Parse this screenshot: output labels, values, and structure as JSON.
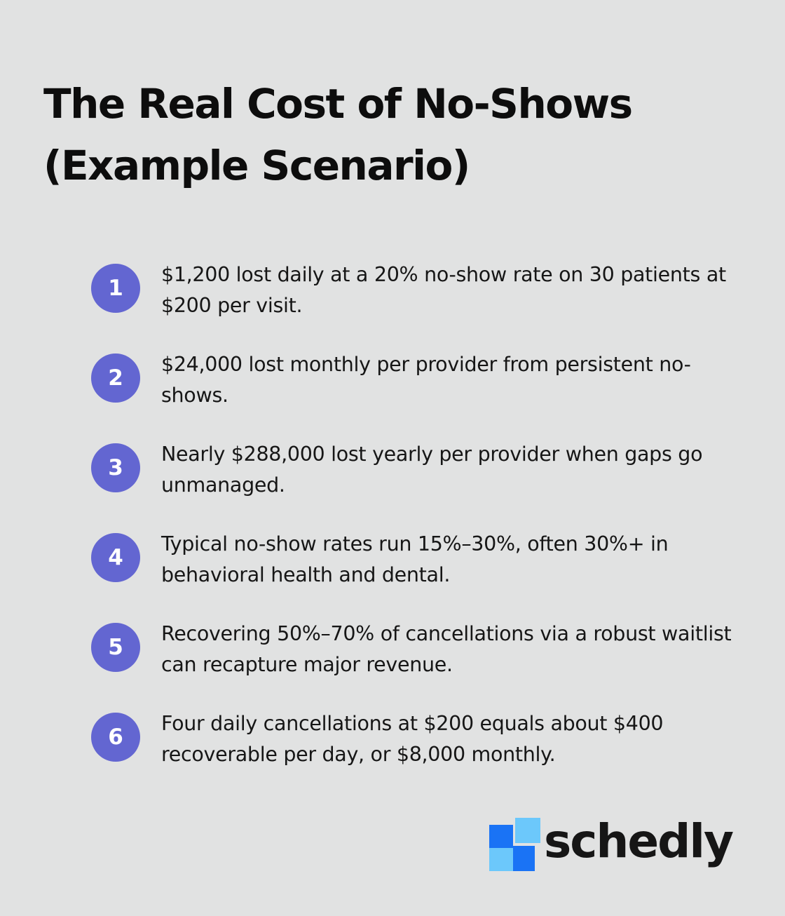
{
  "title_line1": "The Real Cost of No-Shows",
  "title_line2": "(Example Scenario)",
  "items": [
    {
      "number": "1",
      "text": "$1,200 lost daily at a 20% no-show rate on 30 patients at $200 per visit."
    },
    {
      "number": "2",
      "text": "$24,000 lost monthly per provider from persistent no-shows."
    },
    {
      "number": "3",
      "text": "Nearly $288,000 lost yearly per provider when gaps go unmanaged."
    },
    {
      "number": "4",
      "text": "Typical no-show rates run 15%–30%, often 30%+ in behavioral health and dental."
    },
    {
      "number": "5",
      "text": "Recovering 50%–70% of cancellations via a robust waitlist can recapture major revenue."
    },
    {
      "number": "6",
      "text": "Four daily cancellations at $200 equals about $400 recoverable per day, or $8,000 monthly."
    }
  ],
  "logo": {
    "wordmark": "schedly",
    "colors": {
      "primary_blue": "#1a73f5",
      "light_blue": "#6cc8fb",
      "badge": "#6366d1"
    }
  }
}
